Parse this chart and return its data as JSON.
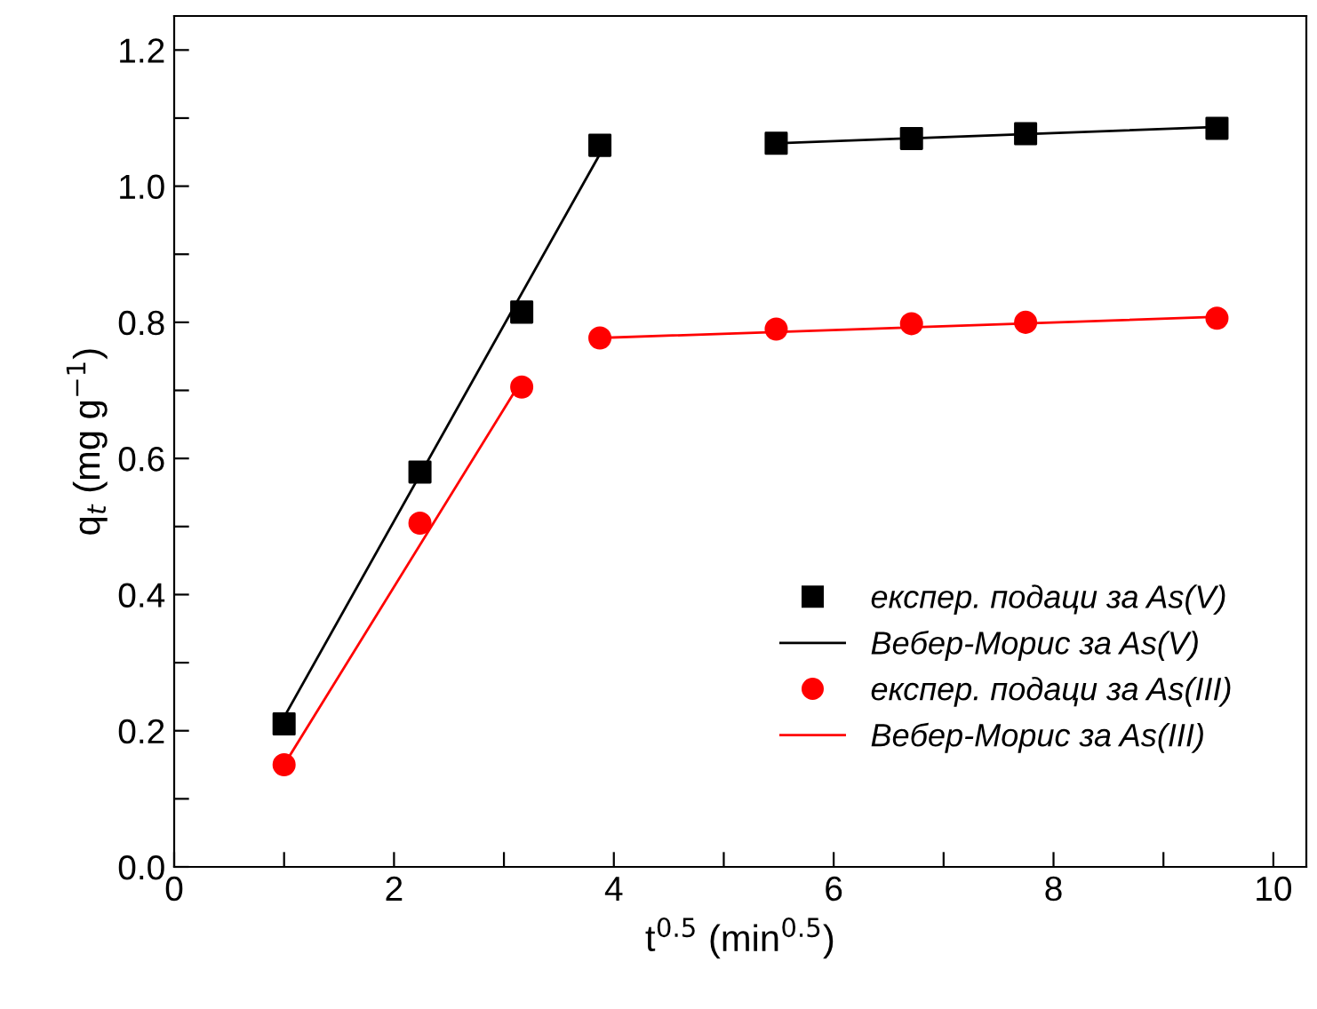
{
  "chart_data": {
    "type": "scatter",
    "xlabel": "t$^{0.5}$ (min$^{0.5}$)",
    "ylabel": "q$_{t}$ (mg g$^{−1}$)",
    "xlim": [
      0,
      10.3
    ],
    "ylim": [
      0,
      1.25
    ],
    "xticks": [
      0,
      {
        "value": 1,
        "label": null
      },
      2,
      {
        "value": 3,
        "label": null
      },
      4,
      {
        "value": 5,
        "label": null
      },
      6,
      {
        "value": 7,
        "label": null
      },
      8,
      {
        "value": 9,
        "label": null
      },
      10
    ],
    "yticks": [
      {
        "value": 0,
        "label": "0.0"
      },
      {
        "value": 0.1,
        "label": null
      },
      {
        "value": 0.2,
        "label": "0.2"
      },
      {
        "value": 0.3,
        "label": null
      },
      {
        "value": 0.4,
        "label": "0.4"
      },
      {
        "value": 0.5,
        "label": null
      },
      {
        "value": 0.6,
        "label": "0.6"
      },
      {
        "value": 0.7,
        "label": null
      },
      {
        "value": 0.8,
        "label": "0.8"
      },
      {
        "value": 0.9,
        "label": null
      },
      {
        "value": 1.0,
        "label": "1.0"
      },
      {
        "value": 1.1,
        "label": null
      },
      {
        "value": 1.2,
        "label": "1.2"
      }
    ],
    "legend": "bottom right",
    "grid": false,
    "series": [
      {
        "name": "експер. подаци за As(V)",
        "marker": "square",
        "color": "#000000",
        "x": [
          1,
          2.236,
          3.162,
          3.873,
          5.477,
          6.708,
          7.746,
          9.487
        ],
        "values": [
          0.21,
          0.58,
          0.815,
          1.06,
          1.063,
          1.07,
          1.077,
          1.085
        ]
      },
      {
        "name": "Вебер-Морис за As(V)",
        "type": "line",
        "marker": "none",
        "line_style": "solid",
        "color": "#000000",
        "x": [
          1,
          3.9,
          4.6,
          5.477,
          9.487
        ],
        "values": [
          0.22,
          1.055,
          null,
          1.063,
          1.087
        ]
      },
      {
        "name": "експер. подаци за As(III)",
        "marker": "circle",
        "color": "#ff0000",
        "x": [
          1,
          2.236,
          3.162,
          3.873,
          5.477,
          6.708,
          7.746,
          9.487
        ],
        "values": [
          0.15,
          0.505,
          0.705,
          0.777,
          0.79,
          0.798,
          0.8,
          0.806
        ]
      },
      {
        "name": "Вебер-Морис за As(III)",
        "type": "line",
        "marker": "none",
        "line_style": "solid",
        "color": "#ff0000",
        "x": [
          1,
          3.162,
          3.5,
          3.873,
          9.487
        ],
        "values": [
          0.15,
          0.715,
          null,
          0.777,
          0.808
        ]
      }
    ]
  }
}
